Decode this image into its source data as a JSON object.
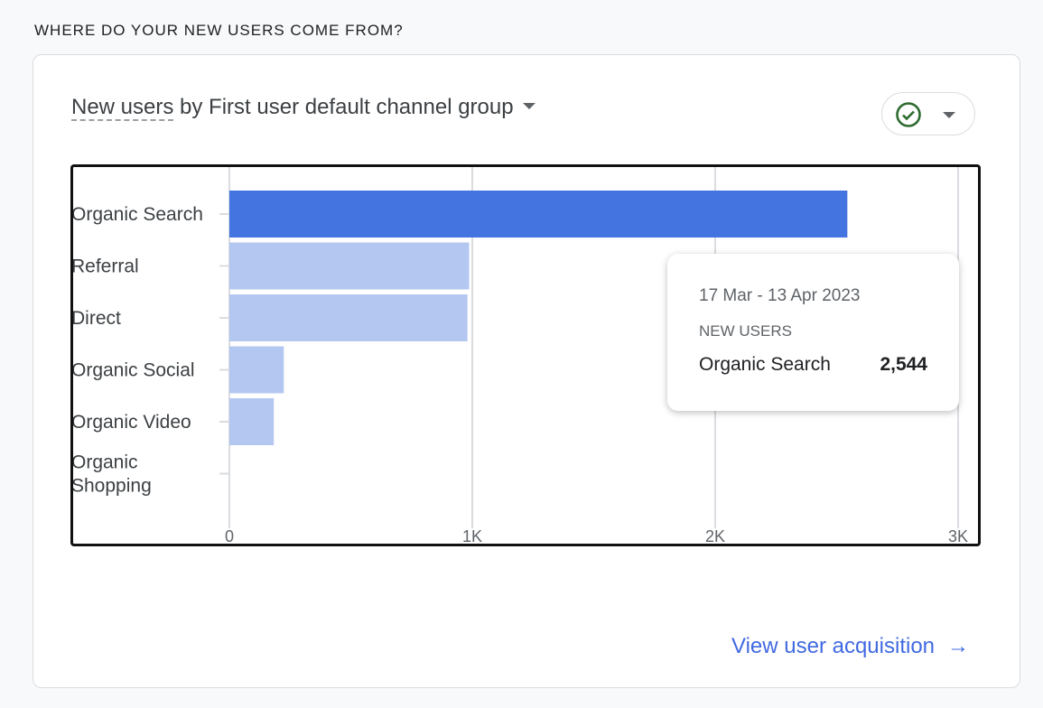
{
  "section_title": "WHERE DO YOUR NEW USERS COME FROM?",
  "card": {
    "metric": "New users",
    "title_rest": " by First user default channel group",
    "compare_icon": "check-circle-icon",
    "link_label": "View user acquisition",
    "link_icon": "arrow-right-icon"
  },
  "tooltip": {
    "date_range": "17 Mar - 13 Apr 2023",
    "metric_label": "NEW USERS",
    "category": "Organic Search",
    "value": "2,544"
  },
  "colors": {
    "highlight": "#4374e0",
    "bar": "#b4c7f1",
    "link": "#4169e1",
    "check": "#2e6b30"
  },
  "chart_data": {
    "type": "bar",
    "orientation": "horizontal",
    "title": "New users by First user default channel group",
    "xlabel": "",
    "ylabel": "",
    "categories": [
      "Organic Search",
      "Referral",
      "Direct",
      "Organic Social",
      "Organic Video",
      "Organic Shopping"
    ],
    "values": [
      2544,
      987,
      980,
      224,
      183,
      0
    ],
    "highlighted": "Organic Search",
    "xlim": [
      0,
      3000
    ],
    "xticks": [
      0,
      1000,
      2000,
      3000
    ],
    "xtick_labels": [
      "0",
      "1K",
      "2K",
      "3K"
    ],
    "grid": true
  }
}
